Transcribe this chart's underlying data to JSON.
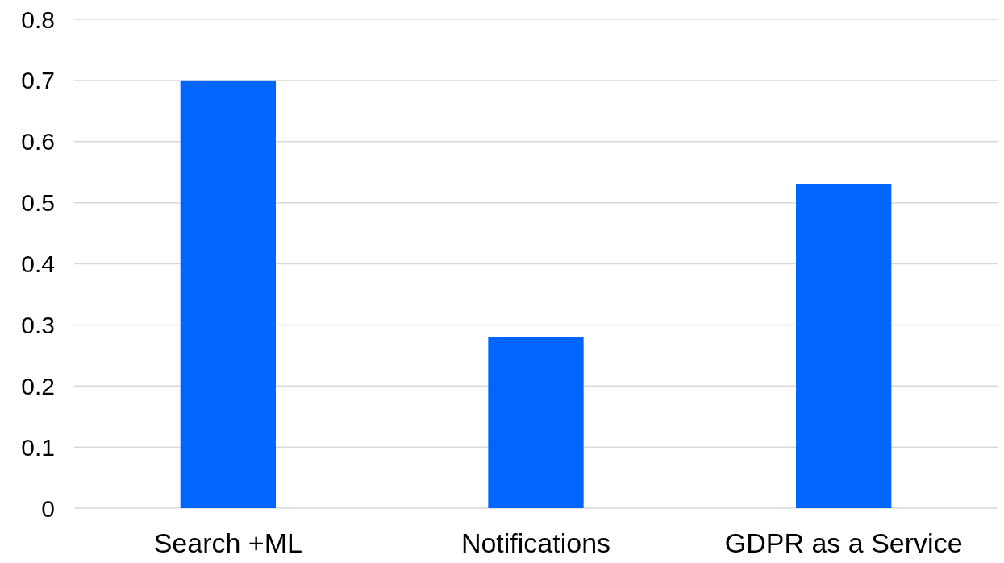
{
  "chart_data": {
    "type": "bar",
    "categories": [
      "Search +ML",
      "Notifications",
      "GDPR as a Service"
    ],
    "series": [
      {
        "color": "#0066ff",
        "values": [
          0.7,
          0.28,
          0.53
        ]
      }
    ],
    "ylim": [
      0,
      0.8
    ],
    "yticks": [
      0,
      0.1,
      0.2,
      0.3,
      0.4,
      0.5,
      0.6,
      0.7,
      0.8
    ],
    "grid": "y"
  }
}
